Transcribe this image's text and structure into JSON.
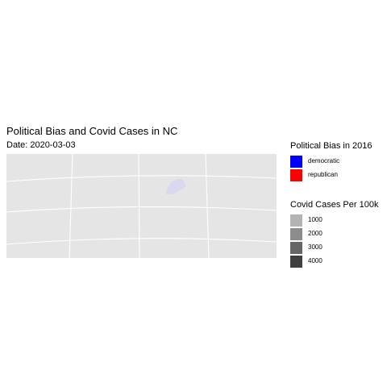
{
  "title": "Political Bias and Covid Cases in NC",
  "subtitle": "Date: 2020-03-03",
  "colors": {
    "panel_background": "#e5e5e5",
    "graticule": "#ffffff",
    "region_fill": "#d8d8ef",
    "democratic": "#0000ff",
    "republican": "#ff0000"
  },
  "legend_bias": {
    "title": "Political Bias in 2016",
    "items": [
      {
        "label": "democratic",
        "color": "#0000ff"
      },
      {
        "label": "republican",
        "color": "#ff0000"
      }
    ]
  },
  "legend_cases": {
    "title": "Covid Cases Per 100k",
    "items": [
      {
        "label": "1000",
        "color": "#b3b3b3"
      },
      {
        "label": "2000",
        "color": "#8c8c8c"
      },
      {
        "label": "3000",
        "color": "#666666"
      },
      {
        "label": "4000",
        "color": "#404040"
      }
    ]
  }
}
